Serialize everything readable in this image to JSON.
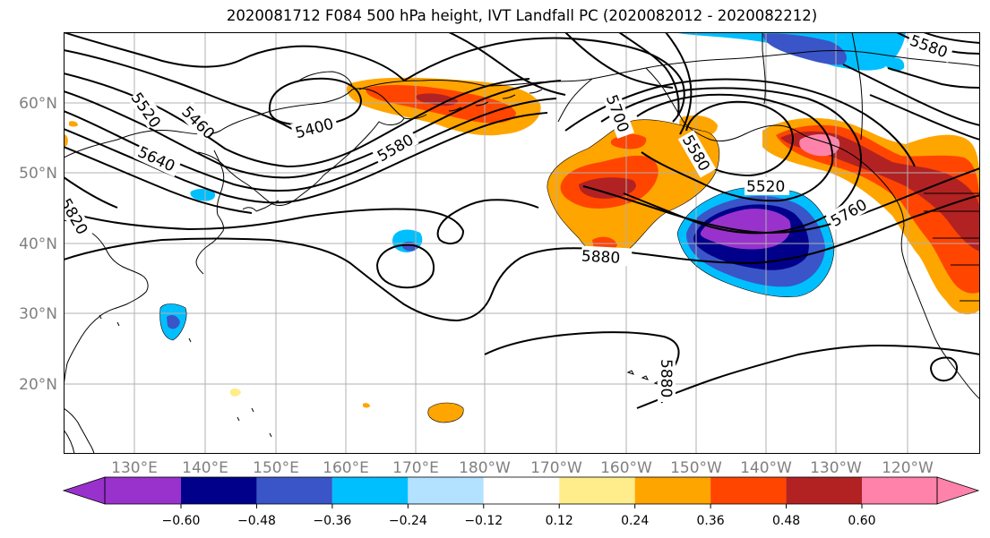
{
  "title": "2020081712 F084 500 hPa height, IVT Landfall PC (2020082012 - 2020082212)",
  "map": {
    "lat_labels": [
      "60°N",
      "50°N",
      "40°N",
      "30°N",
      "20°N"
    ],
    "lon_labels": [
      "130°E",
      "140°E",
      "150°E",
      "160°E",
      "170°E",
      "180°W",
      "170°W",
      "160°W",
      "150°W",
      "140°W",
      "130°W",
      "120°W"
    ],
    "contour_labels": [
      "5520",
      "5460",
      "5400",
      "5580",
      "5640",
      "5820",
      "5880",
      "5580",
      "5520",
      "5760",
      "5880",
      "5580",
      "5700"
    ],
    "gridline_color": "#b0b0b0",
    "label_color": "#808080"
  },
  "colorbar": {
    "ticks": [
      "−0.60",
      "−0.48",
      "−0.36",
      "−0.24",
      "−0.12",
      "0.12",
      "0.24",
      "0.36",
      "0.48",
      "0.60"
    ],
    "colors": [
      "#9932cc",
      "#00008b",
      "#3a55c8",
      "#00bfff",
      "#b2e2ff",
      "#ffffff",
      "#ffec8b",
      "#ffa500",
      "#ff4500",
      "#b22222",
      "#ff82ab"
    ]
  },
  "colors": {
    "purple": "#9932cc",
    "navy": "#00008b",
    "royal": "#3a55c8",
    "sky": "#00bfff",
    "pale_blue": "#b2e2ff",
    "yellow": "#ffec8b",
    "orange": "#ffa500",
    "red_orange": "#ff4500",
    "firebrick": "#b22222",
    "pink": "#ff82ab"
  }
}
